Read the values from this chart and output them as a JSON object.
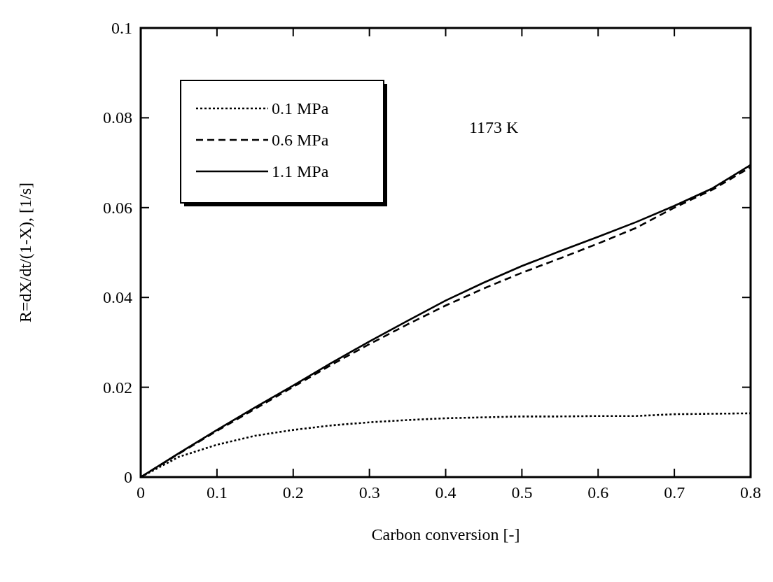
{
  "chart_data": {
    "type": "line",
    "xlabel": "Carbon conversion  [-]",
    "ylabel": "R=dX/dt/(1-X),  [1/s]",
    "annotations": [
      "1173 K"
    ],
    "x": [
      0,
      0.05,
      0.1,
      0.15,
      0.2,
      0.25,
      0.3,
      0.35,
      0.4,
      0.45,
      0.5,
      0.55,
      0.6,
      0.65,
      0.7,
      0.75,
      0.8
    ],
    "series": [
      {
        "name": "0.1 MPa",
        "color": "#000000",
        "line_style": "dotted",
        "values": [
          0,
          0.0045,
          0.0072,
          0.0092,
          0.0105,
          0.0115,
          0.0122,
          0.0127,
          0.0131,
          0.0133,
          0.0135,
          0.0135,
          0.0136,
          0.0136,
          0.014,
          0.0141,
          0.0142
        ]
      },
      {
        "name": "0.6 MPa",
        "color": "#000000",
        "line_style": "dashed",
        "values": [
          0,
          0.0052,
          0.0103,
          0.0152,
          0.0201,
          0.025,
          0.0296,
          0.034,
          0.0382,
          0.042,
          0.0455,
          0.0487,
          0.052,
          0.0555,
          0.06,
          0.064,
          0.069
        ]
      },
      {
        "name": "1.1 MPa",
        "color": "#000000",
        "line_style": "solid",
        "values": [
          0,
          0.0053,
          0.0105,
          0.0155,
          0.0204,
          0.0254,
          0.0302,
          0.0348,
          0.0393,
          0.0433,
          0.047,
          0.0503,
          0.0535,
          0.0568,
          0.0604,
          0.0643,
          0.0695
        ]
      }
    ],
    "xlim": [
      0,
      0.8
    ],
    "xticks": [
      0,
      0.1,
      0.2,
      0.3,
      0.4,
      0.5,
      0.6,
      0.7,
      0.8
    ],
    "ylim": [
      0,
      0.1
    ],
    "yticks": [
      0,
      0.02,
      0.04,
      0.06,
      0.08,
      0.1
    ],
    "legend": "top left",
    "grid": false
  }
}
